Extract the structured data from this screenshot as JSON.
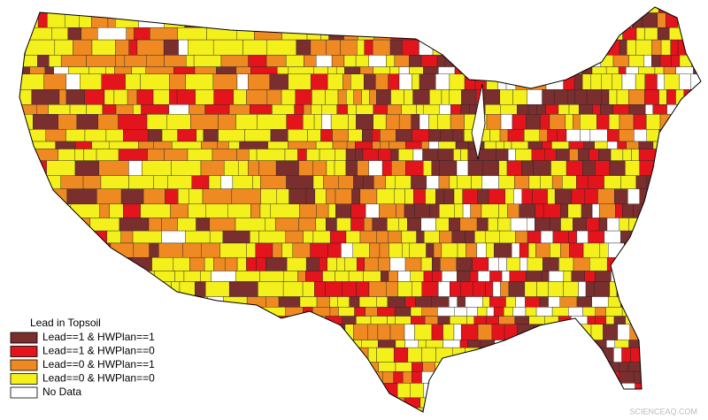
{
  "legend": {
    "title": "Lead in Topsoil",
    "items": [
      {
        "label": "Lead==1 & HWPlan==1",
        "color": "#7a2e2e"
      },
      {
        "label": "Lead==1 & HWPlan==0",
        "color": "#e3141b"
      },
      {
        "label": "Lead==0 & HWPlan==1",
        "color": "#ef8a22"
      },
      {
        "label": "Lead==0 & HWPlan==0",
        "color": "#f4f01c"
      },
      {
        "label": "No Data",
        "color": "#ffffff"
      }
    ]
  },
  "watermark": "SCIENCEAQ.COM"
}
